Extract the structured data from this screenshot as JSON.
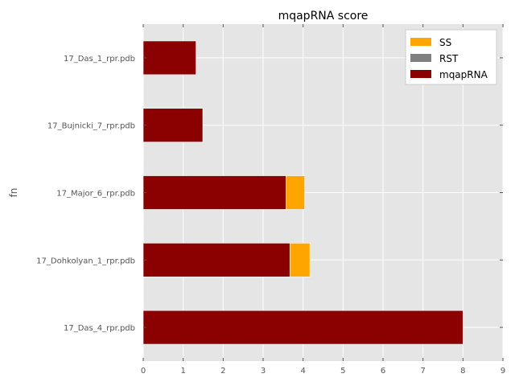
{
  "chart_data": {
    "type": "bar",
    "orientation": "horizontal",
    "stacked": true,
    "title": "mqapRNA score",
    "xlabel": "",
    "ylabel": "fn",
    "categories": [
      "17_Das_4_rpr.pdb",
      "17_Dohkolyan_1_rpr.pdb",
      "17_Major_6_rpr.pdb",
      "17_Bujnicki_7_rpr.pdb",
      "17_Das_1_rpr.pdb"
    ],
    "series": [
      {
        "name": "mqapRNA",
        "color": "#8b0000",
        "values": [
          8.0,
          3.67,
          3.57,
          1.49,
          1.32
        ]
      },
      {
        "name": "RST",
        "color": "#808080",
        "values": [
          0,
          0,
          0,
          0,
          0
        ]
      },
      {
        "name": "SS",
        "color": "#ffa500",
        "values": [
          0.0,
          0.5,
          0.47,
          0.0,
          0.0
        ]
      }
    ],
    "legend_order": [
      "SS",
      "RST",
      "mqapRNA"
    ],
    "xlim": [
      0,
      9
    ],
    "xticks": [
      "0",
      "1",
      "2",
      "3",
      "4",
      "5",
      "6",
      "7",
      "8",
      "9"
    ],
    "grid": true,
    "legend_position": "top-right",
    "background": "#e5e5e5",
    "grid_color": "#ffffff"
  }
}
